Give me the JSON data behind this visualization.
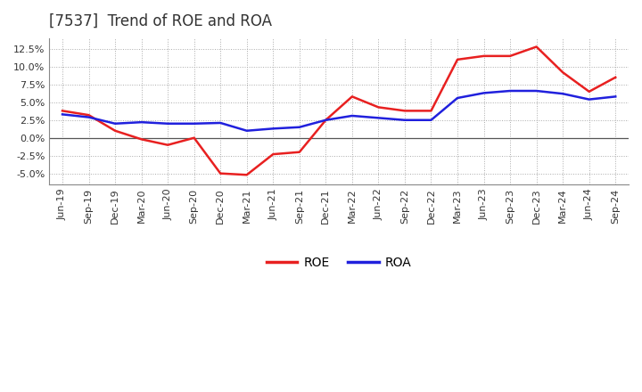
{
  "title": "[7537]  Trend of ROE and ROA",
  "x_labels": [
    "Jun-19",
    "Sep-19",
    "Dec-19",
    "Mar-20",
    "Jun-20",
    "Sep-20",
    "Dec-20",
    "Mar-21",
    "Jun-21",
    "Sep-21",
    "Dec-21",
    "Mar-22",
    "Jun-22",
    "Sep-22",
    "Dec-22",
    "Mar-23",
    "Jun-23",
    "Sep-23",
    "Dec-23",
    "Mar-24",
    "Jun-24",
    "Sep-24"
  ],
  "roe": [
    3.8,
    3.2,
    1.0,
    -0.2,
    -1.0,
    0.0,
    -5.0,
    -5.2,
    -2.3,
    -2.0,
    2.5,
    5.8,
    4.3,
    3.8,
    3.8,
    11.0,
    11.5,
    11.5,
    12.8,
    9.2,
    6.5,
    8.5
  ],
  "roa": [
    3.3,
    2.9,
    2.0,
    2.2,
    2.0,
    2.0,
    2.1,
    1.0,
    1.3,
    1.5,
    2.5,
    3.1,
    2.8,
    2.5,
    2.5,
    5.6,
    6.3,
    6.6,
    6.6,
    6.2,
    5.4,
    5.8
  ],
  "roe_color": "#e82020",
  "roa_color": "#2020dd",
  "bg_color": "#ffffff",
  "plot_bg_color": "#ffffff",
  "grid_color": "#aaaaaa",
  "ylim": [
    -6.5,
    14.0
  ],
  "yticks": [
    -5.0,
    -2.5,
    0.0,
    2.5,
    5.0,
    7.5,
    10.0,
    12.5
  ],
  "title_fontsize": 12,
  "tick_fontsize": 8,
  "legend_fontsize": 10,
  "linewidth": 1.8
}
